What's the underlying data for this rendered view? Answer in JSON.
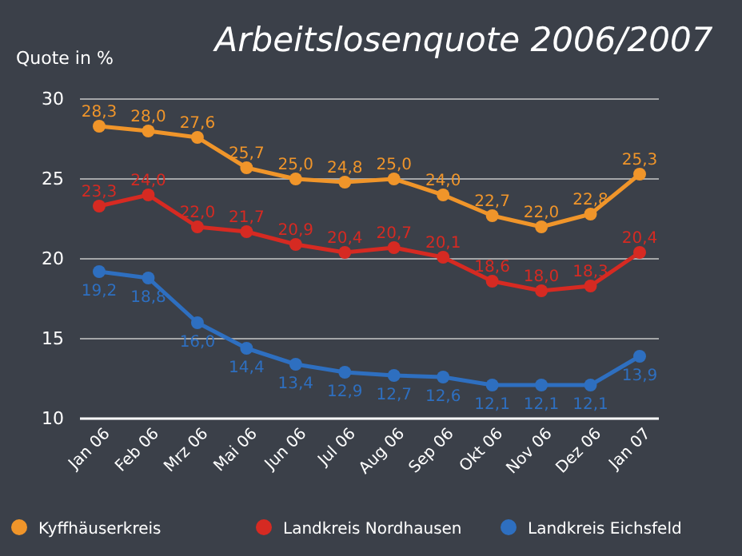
{
  "chart_data": {
    "type": "line",
    "title": "Arbeitslosenquote 2006/2007",
    "ylabel": "Quote in %",
    "categories": [
      "Jan 06",
      "Feb 06",
      "Mrz 06",
      "Mai 06",
      "Jun 06",
      "Jul 06",
      "Aug 06",
      "Sep 06",
      "Okt 06",
      "Nov 06",
      "Dez 06",
      "Jan 07"
    ],
    "series": [
      {
        "name": "Kyffhäuserkreis",
        "color": "#f0952a",
        "values": [
          28.3,
          28.0,
          27.6,
          25.7,
          25.0,
          24.8,
          25.0,
          24.0,
          22.7,
          22.0,
          22.8,
          25.3
        ],
        "value_labels": [
          "28,3",
          "28,0",
          "27,6",
          "25,7",
          "25,0",
          "24,8",
          "25,0",
          "24,0",
          "22,7",
          "22,0",
          "22,8",
          "25,3"
        ]
      },
      {
        "name": "Landkreis Nordhausen",
        "color": "#d62a22",
        "values": [
          23.3,
          24.0,
          22.0,
          21.7,
          20.9,
          20.4,
          20.7,
          20.1,
          18.6,
          18.0,
          18.3,
          20.4
        ],
        "value_labels": [
          "23,3",
          "24,0",
          "22,0",
          "21,7",
          "20,9",
          "20,4",
          "20,7",
          "20,1",
          "18,6",
          "18,0",
          "18,3",
          "20,4"
        ]
      },
      {
        "name": "Landkreis Eichsfeld",
        "color": "#2e6fc0",
        "values": [
          19.2,
          18.8,
          16.0,
          14.4,
          13.4,
          12.9,
          12.7,
          12.6,
          12.1,
          12.1,
          12.1,
          13.9
        ],
        "value_labels": [
          "19,2",
          "18,8",
          "16,0",
          "14,4",
          "13,4",
          "12,9",
          "12,7",
          "12,6",
          "12,1",
          "12,1",
          "12,1",
          "13,9"
        ]
      }
    ],
    "ylim": [
      10,
      30
    ],
    "yticks": [
      10,
      15,
      20,
      25,
      30
    ],
    "grid": "y",
    "legend": "bottom",
    "marker": "circle",
    "line_style": "solid"
  }
}
